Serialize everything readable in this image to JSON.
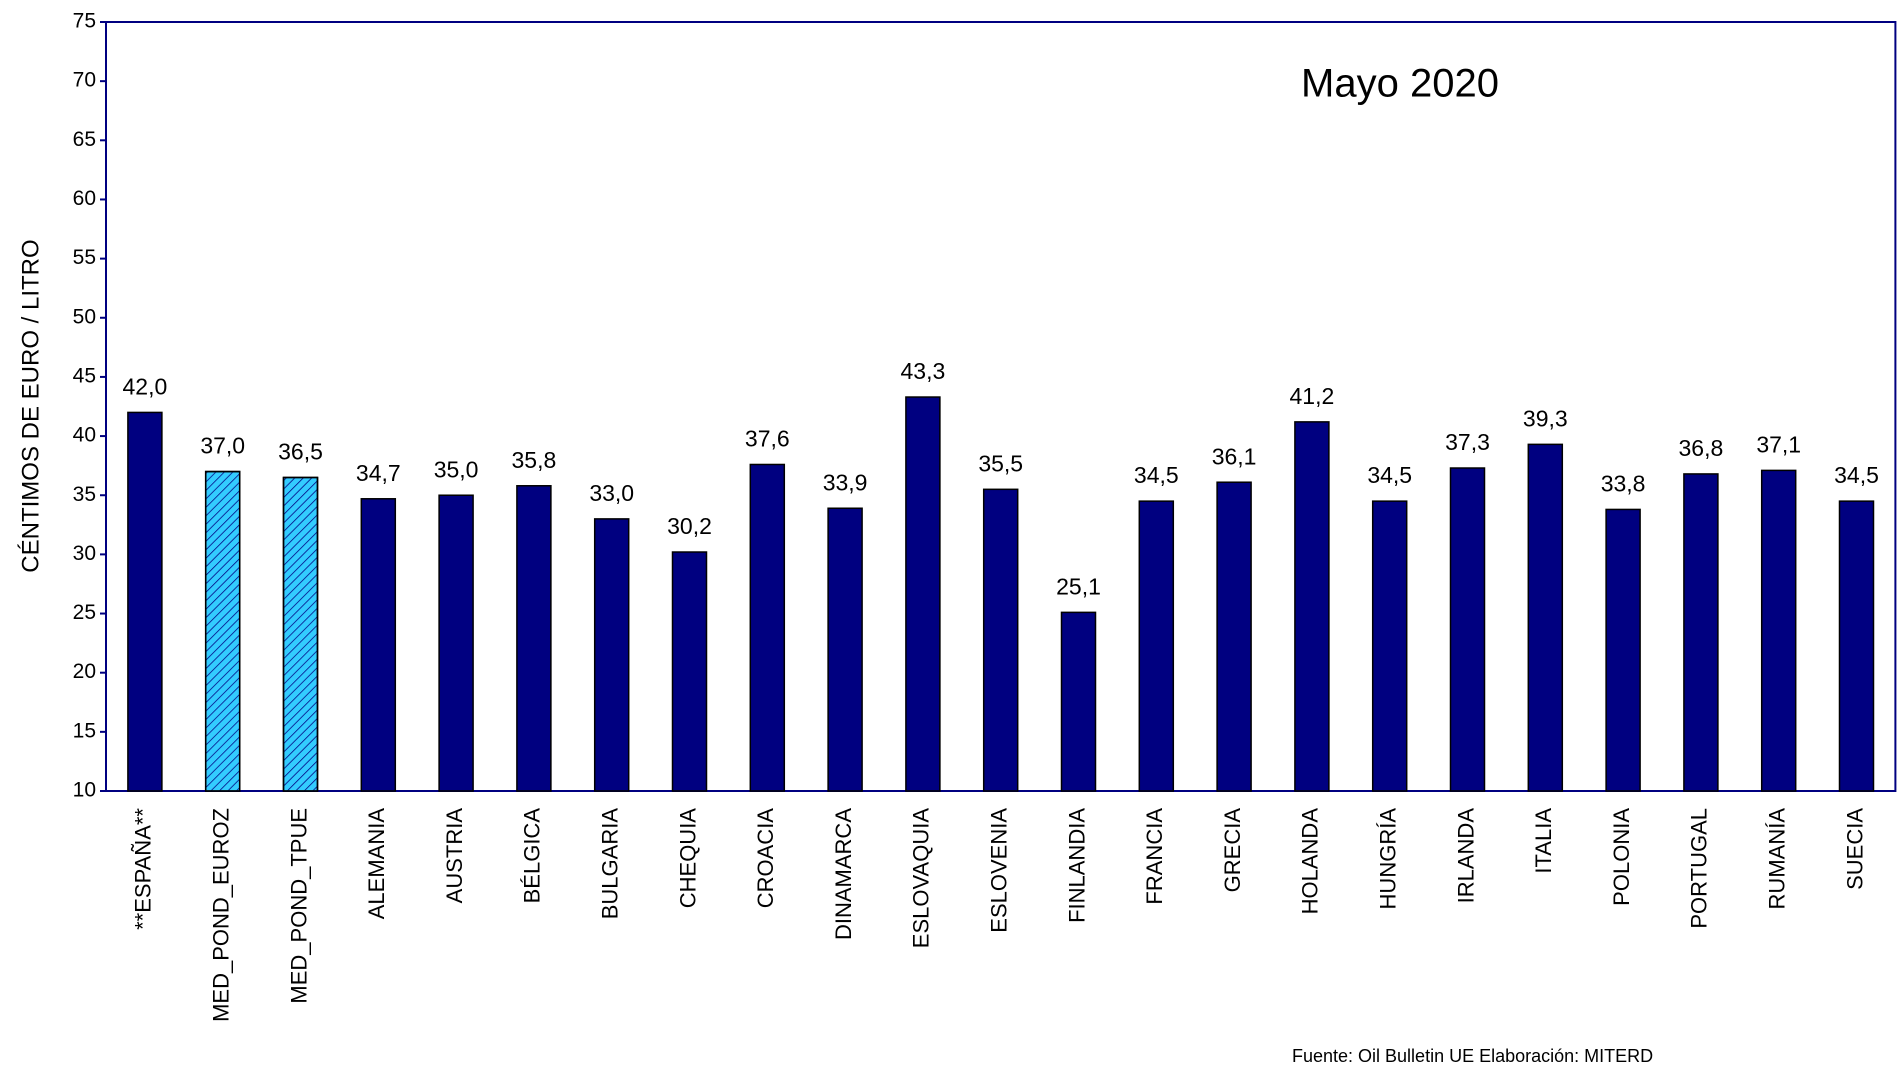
{
  "chart_data": {
    "type": "bar",
    "title": "Mayo 2020",
    "y_label": "CÉNTIMOS DE EURO / LITRO",
    "source": "Fuente: Oil Bulletin UE        Elaboración: MITERD",
    "categories": [
      "**ESPAÑA**",
      "MED_POND_EUROZ",
      "MED_POND_TPUE",
      "ALEMANIA",
      "AUSTRIA",
      "BÉLGICA",
      "BULGARIA",
      "CHEQUIA",
      "CROACIA",
      "DINAMARCA",
      "ESLOVAQUIA",
      "ESLOVENIA",
      "FINLANDIA",
      "FRANCIA",
      "GRECIA",
      "HOLANDA",
      "HUNGRÍA",
      "IRLANDA",
      "ITALIA",
      "POLONIA",
      "PORTUGAL",
      "RUMANÍA",
      "SUECIA"
    ],
    "values": [
      42.0,
      37.0,
      36.5,
      34.7,
      35.0,
      35.8,
      33.0,
      30.2,
      37.6,
      33.9,
      43.3,
      35.5,
      25.1,
      34.5,
      36.1,
      41.2,
      34.5,
      37.3,
      39.3,
      33.8,
      36.8,
      37.1,
      34.5
    ],
    "value_labels": [
      "42,0",
      "37,0",
      "36,5",
      "34,7",
      "35,0",
      "35,8",
      "33,0",
      "30,2",
      "37,6",
      "33,9",
      "43,3",
      "35,5",
      "25,1",
      "34,5",
      "36,1",
      "41,2",
      "34,5",
      "37,3",
      "39,3",
      "33,8",
      "36,8",
      "37,1",
      "34,5"
    ],
    "colors": [
      "#000080",
      "#33ccff",
      "#33ccff",
      "#000080",
      "#000080",
      "#000080",
      "#000080",
      "#000080",
      "#000080",
      "#000080",
      "#000080",
      "#000080",
      "#000080",
      "#000080",
      "#000080",
      "#000080",
      "#000080",
      "#000080",
      "#000080",
      "#000080",
      "#000080",
      "#000080",
      "#000080"
    ],
    "hatched": [
      false,
      true,
      true,
      false,
      false,
      false,
      false,
      false,
      false,
      false,
      false,
      false,
      false,
      false,
      false,
      false,
      false,
      false,
      false,
      false,
      false,
      false,
      false
    ],
    "ylim": [
      10,
      75
    ],
    "yticks": [
      10,
      15,
      20,
      25,
      30,
      35,
      40,
      45,
      50,
      55,
      60,
      65,
      70,
      75
    ]
  }
}
